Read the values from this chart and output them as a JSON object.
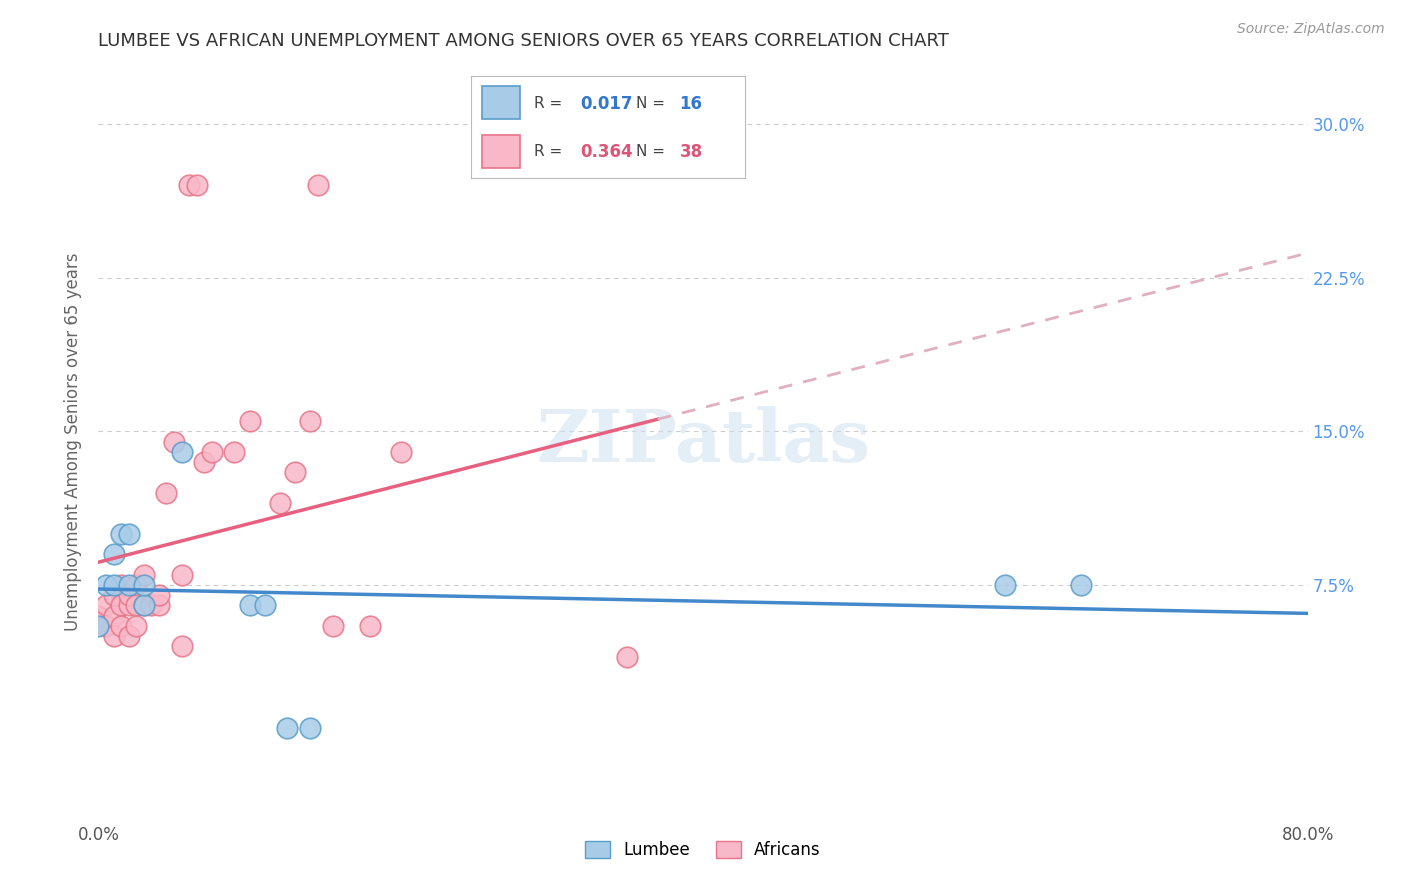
{
  "title": "LUMBEE VS AFRICAN UNEMPLOYMENT AMONG SENIORS OVER 65 YEARS CORRELATION CHART",
  "source": "Source: ZipAtlas.com",
  "ylabel": "Unemployment Among Seniors over 65 years",
  "xlim": [
    0.0,
    0.8
  ],
  "ylim": [
    -0.04,
    0.33
  ],
  "xticks": [
    0.0,
    0.1,
    0.2,
    0.3,
    0.4,
    0.5,
    0.6,
    0.7,
    0.8
  ],
  "xticklabels": [
    "0.0%",
    "",
    "",
    "",
    "",
    "",
    "",
    "",
    "80.0%"
  ],
  "yticks": [
    0.075,
    0.15,
    0.225,
    0.3
  ],
  "yticklabels": [
    "7.5%",
    "15.0%",
    "22.5%",
    "30.0%"
  ],
  "lumbee_R": "0.017",
  "lumbee_N": "16",
  "african_R": "0.364",
  "african_N": "38",
  "lumbee_color": "#a8cce8",
  "african_color": "#f9b8c8",
  "lumbee_edge_color": "#5b9dc9",
  "african_edge_color": "#e8758a",
  "lumbee_line_color": "#4488cc",
  "african_line_color": "#e86080",
  "lumbee_x": [
    0.0,
    0.005,
    0.01,
    0.01,
    0.015,
    0.02,
    0.02,
    0.03,
    0.03,
    0.055,
    0.1,
    0.11,
    0.125,
    0.14,
    0.6,
    0.65
  ],
  "lumbee_y": [
    0.055,
    0.075,
    0.09,
    0.075,
    0.1,
    0.1,
    0.075,
    0.065,
    0.075,
    0.14,
    0.065,
    0.065,
    0.005,
    0.005,
    0.075,
    0.075
  ],
  "african_x": [
    0.0,
    0.005,
    0.005,
    0.01,
    0.01,
    0.01,
    0.015,
    0.015,
    0.015,
    0.02,
    0.02,
    0.02,
    0.025,
    0.025,
    0.025,
    0.03,
    0.03,
    0.035,
    0.04,
    0.04,
    0.045,
    0.05,
    0.055,
    0.055,
    0.06,
    0.065,
    0.07,
    0.075,
    0.09,
    0.1,
    0.12,
    0.13,
    0.14,
    0.145,
    0.155,
    0.18,
    0.2,
    0.35
  ],
  "african_y": [
    0.06,
    0.065,
    0.055,
    0.06,
    0.07,
    0.05,
    0.075,
    0.065,
    0.055,
    0.065,
    0.07,
    0.05,
    0.075,
    0.065,
    0.055,
    0.08,
    0.065,
    0.065,
    0.065,
    0.07,
    0.12,
    0.145,
    0.08,
    0.045,
    0.27,
    0.27,
    0.135,
    0.14,
    0.14,
    0.155,
    0.115,
    0.13,
    0.155,
    0.27,
    0.055,
    0.055,
    0.14,
    0.04
  ],
  "watermark_text": "ZIPatlas",
  "background_color": "#ffffff",
  "grid_color": "#cccccc"
}
